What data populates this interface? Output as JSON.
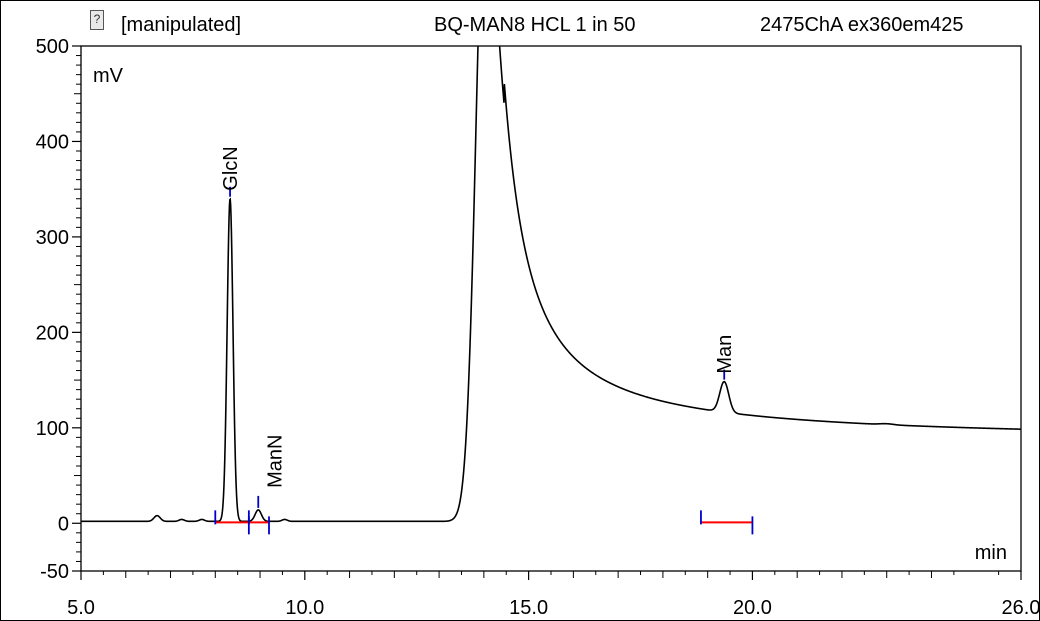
{
  "header": {
    "status": "[manipulated]",
    "sample": "BQ-MAN8 HCL 1 in 50",
    "channel": "2475ChA ex360em425"
  },
  "icons": {
    "status_icon": "question-document-icon"
  },
  "colors": {
    "trace": "#000000",
    "baseline_marker": "#ff0000",
    "peak_marker": "#0000cc"
  },
  "chart_data": {
    "type": "line",
    "title": "",
    "xlabel": "min",
    "ylabel": "mV",
    "xlim": [
      5.0,
      26.0
    ],
    "ylim": [
      -50,
      500
    ],
    "x_ticks": [
      "5.0",
      "10.0",
      "15.0",
      "20.0",
      "26.0"
    ],
    "x_tick_values": [
      5.0,
      10.0,
      15.0,
      20.0,
      26.0
    ],
    "y_ticks": [
      "-50",
      "0",
      "100",
      "200",
      "300",
      "400",
      "500"
    ],
    "y_tick_values": [
      -50,
      0,
      100,
      200,
      300,
      400,
      500
    ],
    "grid": false,
    "baseline": 2,
    "peaks": [
      {
        "name": "",
        "rt": 6.7,
        "height": 6,
        "width": 0.07
      },
      {
        "name": "",
        "rt": 7.25,
        "height": 2,
        "width": 0.06
      },
      {
        "name": "",
        "rt": 7.7,
        "height": 2,
        "width": 0.06
      },
      {
        "name": "GlcN",
        "rt": 8.33,
        "height": 338,
        "width": 0.065,
        "label": "GlcN",
        "integration": {
          "start": 8.0,
          "end": 8.75
        }
      },
      {
        "name": "ManN",
        "rt": 8.96,
        "height": 12,
        "width": 0.07,
        "label": "ManN",
        "integration": {
          "start": 8.75,
          "end": 9.2
        }
      },
      {
        "name": "",
        "rt": 9.55,
        "height": 2,
        "width": 0.06
      },
      {
        "name": "",
        "rt": 14.05,
        "height": 700,
        "width": 0.22,
        "tail": 0.4
      },
      {
        "name": "Man",
        "rt": 19.37,
        "height": 32,
        "width": 0.1,
        "label": "Man",
        "integration": {
          "start": 18.85,
          "end": 20.0
        }
      },
      {
        "name": "",
        "rt": 23.0,
        "height": 1,
        "width": 0.15
      }
    ]
  }
}
